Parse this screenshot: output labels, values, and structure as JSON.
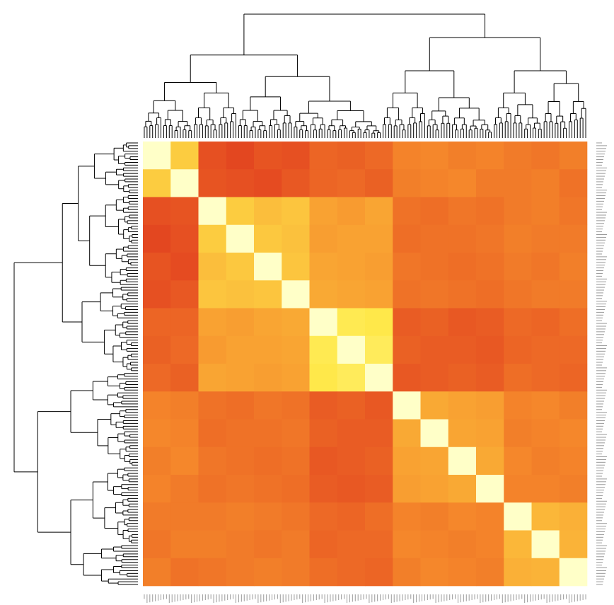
{
  "chart_data": {
    "type": "heatmap",
    "zlim": [
      0,
      1
    ],
    "colormap": {
      "stops": [
        0.25,
        0.45,
        0.7,
        1
      ],
      "colors": [
        "#e03a1e",
        "#f7902c",
        "#ffe84a",
        "#ffffc8"
      ]
    },
    "z": [
      [
        1,
        0.62,
        0.3,
        0.28,
        0.31,
        0.3,
        0.35,
        0.34,
        0.36,
        0.42,
        0.43,
        0.41,
        0.42,
        0.4,
        0.39,
        0.41
      ],
      [
        0.62,
        1,
        0.31,
        0.3,
        0.29,
        0.32,
        0.35,
        0.36,
        0.34,
        0.41,
        0.42,
        0.43,
        0.4,
        0.4,
        0.41,
        0.38
      ],
      [
        0.3,
        0.31,
        1,
        0.62,
        0.58,
        0.6,
        0.5,
        0.48,
        0.51,
        0.38,
        0.37,
        0.39,
        0.38,
        0.4,
        0.41,
        0.39
      ],
      [
        0.28,
        0.3,
        0.62,
        1,
        0.61,
        0.59,
        0.49,
        0.5,
        0.5,
        0.37,
        0.38,
        0.38,
        0.39,
        0.41,
        0.4,
        0.4
      ],
      [
        0.31,
        0.29,
        0.58,
        0.61,
        1,
        0.6,
        0.51,
        0.5,
        0.49,
        0.39,
        0.38,
        0.37,
        0.38,
        0.4,
        0.39,
        0.41
      ],
      [
        0.3,
        0.32,
        0.6,
        0.59,
        0.6,
        1,
        0.52,
        0.51,
        0.5,
        0.38,
        0.39,
        0.38,
        0.37,
        0.39,
        0.4,
        0.4
      ],
      [
        0.35,
        0.35,
        0.5,
        0.49,
        0.51,
        0.52,
        1,
        0.72,
        0.7,
        0.33,
        0.34,
        0.32,
        0.33,
        0.36,
        0.35,
        0.37
      ],
      [
        0.34,
        0.36,
        0.48,
        0.5,
        0.5,
        0.51,
        0.72,
        1,
        0.74,
        0.34,
        0.33,
        0.33,
        0.32,
        0.35,
        0.36,
        0.36
      ],
      [
        0.36,
        0.34,
        0.51,
        0.5,
        0.49,
        0.5,
        0.7,
        0.74,
        1,
        0.32,
        0.33,
        0.34,
        0.33,
        0.37,
        0.36,
        0.35
      ],
      [
        0.42,
        0.41,
        0.38,
        0.37,
        0.39,
        0.38,
        0.33,
        0.34,
        0.32,
        1,
        0.52,
        0.5,
        0.49,
        0.42,
        0.43,
        0.41
      ],
      [
        0.43,
        0.42,
        0.37,
        0.38,
        0.38,
        0.39,
        0.34,
        0.33,
        0.33,
        0.52,
        1,
        0.51,
        0.5,
        0.41,
        0.42,
        0.43
      ],
      [
        0.41,
        0.43,
        0.39,
        0.38,
        0.37,
        0.38,
        0.32,
        0.33,
        0.34,
        0.5,
        0.51,
        1,
        0.52,
        0.43,
        0.41,
        0.42
      ],
      [
        0.42,
        0.4,
        0.38,
        0.39,
        0.38,
        0.37,
        0.33,
        0.32,
        0.33,
        0.49,
        0.5,
        0.52,
        1,
        0.42,
        0.42,
        0.41
      ],
      [
        0.4,
        0.4,
        0.4,
        0.41,
        0.4,
        0.39,
        0.36,
        0.35,
        0.37,
        0.42,
        0.41,
        0.43,
        0.42,
        1,
        0.56,
        0.54
      ],
      [
        0.39,
        0.41,
        0.41,
        0.4,
        0.39,
        0.4,
        0.35,
        0.36,
        0.36,
        0.43,
        0.42,
        0.41,
        0.42,
        0.56,
        1,
        0.55
      ],
      [
        0.41,
        0.38,
        0.39,
        0.4,
        0.41,
        0.4,
        0.37,
        0.36,
        0.35,
        0.41,
        0.43,
        0.42,
        0.41,
        0.54,
        0.55,
        1
      ]
    ]
  }
}
